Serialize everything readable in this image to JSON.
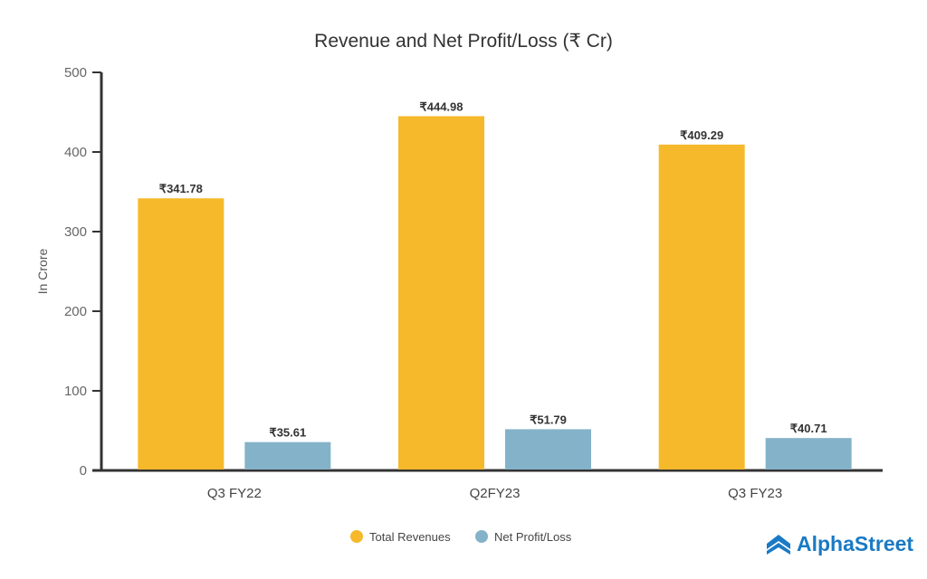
{
  "chart_data": {
    "type": "bar",
    "title": "Revenue and Net Profit/Loss (₹ Cr)",
    "xlabel": "",
    "ylabel": "In Crore",
    "ylim": [
      0,
      500
    ],
    "yticks": [
      0,
      100,
      200,
      300,
      400,
      500
    ],
    "categories": [
      "Q3 FY22",
      "Q2FY23",
      "Q3 FY23"
    ],
    "series": [
      {
        "name": "Total Revenues",
        "values": [
          341.78,
          444.98,
          409.29
        ],
        "labels": [
          "₹341.78",
          "₹444.98",
          "₹409.29"
        ],
        "color": "#f6b92b"
      },
      {
        "name": "Net Profit/Loss",
        "values": [
          35.61,
          51.79,
          40.71
        ],
        "labels": [
          "₹35.61",
          "₹51.79",
          "₹40.71"
        ],
        "color": "#84b3c9"
      }
    ],
    "grid": false,
    "legend": "bottom-center"
  },
  "brand": {
    "name": "AlphaStreet",
    "color": "#1a7ac4"
  }
}
